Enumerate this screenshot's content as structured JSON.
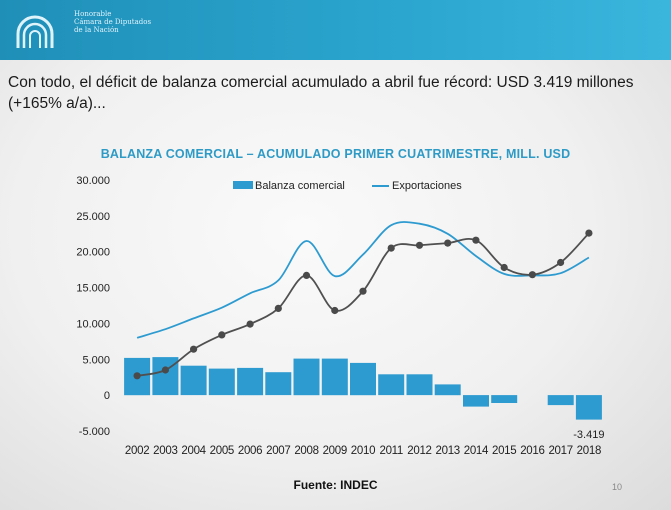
{
  "header": {
    "org_lines": [
      "Honorable",
      "Cámara de Diputados",
      "de la Nación"
    ]
  },
  "headline": "Con todo, el déficit de balanza comercial acumulado a abril fue récord: USD 3.419 millones (+165% a/a)...",
  "footer": {
    "source": "Fuente: INDEC",
    "page": "10"
  },
  "colors": {
    "header": "#2ba6cf",
    "bar": "#2e9bd0",
    "export_line": "#2e9bd0",
    "gray_line": "#505050"
  },
  "chart_data": {
    "type": "bar",
    "title": "BALANZA COMERCIAL – ACUMULADO PRIMER CUATRIMESTRE, MILL. USD",
    "categories": [
      "2002",
      "2003",
      "2004",
      "2005",
      "2006",
      "2007",
      "2008",
      "2009",
      "2010",
      "2011",
      "2012",
      "2013",
      "2014",
      "2015",
      "2016",
      "2017",
      "2018"
    ],
    "series": [
      {
        "name": "Balanza comercial",
        "type": "bar",
        "values": [
          5200,
          5300,
          4100,
          3700,
          3800,
          3200,
          5100,
          5100,
          4500,
          2900,
          2900,
          1500,
          -1600,
          -1100,
          0,
          -1400,
          -3419
        ]
      },
      {
        "name": "Exportaciones",
        "type": "line",
        "values": [
          8000,
          9200,
          10700,
          12200,
          14200,
          16000,
          21500,
          16600,
          19600,
          23700,
          23900,
          22500,
          19400,
          16900,
          16700,
          17000,
          19200
        ]
      },
      {
        "type": "line",
        "markers": true,
        "values": [
          2700,
          3500,
          6400,
          8400,
          9900,
          12100,
          16700,
          11800,
          14500,
          20500,
          20900,
          21200,
          21600,
          17800,
          16800,
          18500,
          22600
        ]
      }
    ],
    "data_labels": [
      {
        "category": "2018",
        "text": "-3.419"
      }
    ],
    "y_ticks": [
      "-5.000",
      "0",
      "5.000",
      "10.000",
      "15.000",
      "20.000",
      "25.000",
      "30.000"
    ],
    "ylim": [
      -5000,
      30000
    ],
    "legend_position": "top"
  }
}
